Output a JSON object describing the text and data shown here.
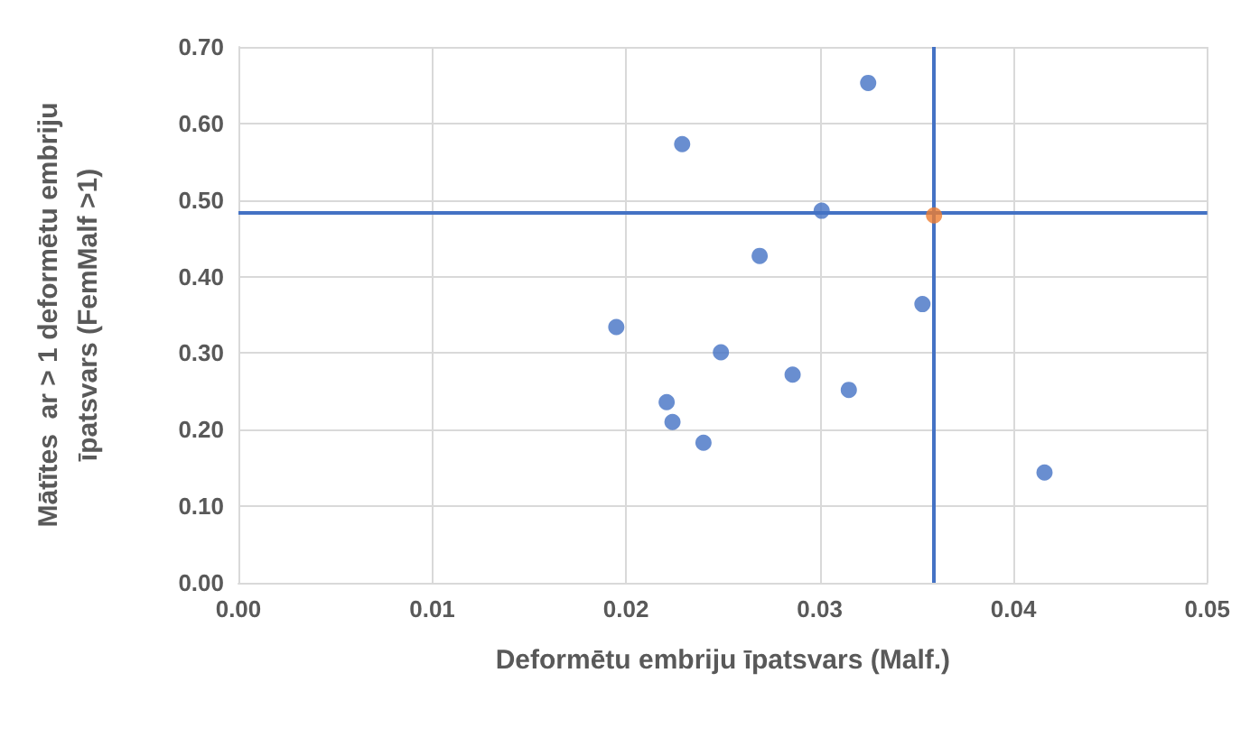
{
  "chart_data": {
    "type": "scatter",
    "xlabel": "Deformētu embriju īpatsvars (Malf.)",
    "ylabel": "Mātītes  ar > 1 deformētu embriju\nīpatsvars (FemMalf >1)",
    "series": [
      {
        "color": "#4472c4",
        "x": [
          0.0325,
          0.0229,
          0.0301,
          0.0269,
          0.0353,
          0.0195,
          0.0249,
          0.0286,
          0.0315,
          0.0221,
          0.0224,
          0.024,
          0.0416
        ],
        "values": [
          0.653,
          0.573,
          0.486,
          0.427,
          0.364,
          0.334,
          0.301,
          0.272,
          0.252,
          0.236,
          0.21,
          0.183,
          0.144
        ]
      },
      {
        "color": "#ed7d31",
        "x": [
          0.0359
        ],
        "values": [
          0.48
        ]
      }
    ],
    "xlim": [
      0,
      0.05
    ],
    "xticks": [
      {
        "value": 0,
        "label": "0.00"
      },
      {
        "value": 0.01,
        "label": "0.01"
      },
      {
        "value": 0.02,
        "label": "0.02"
      },
      {
        "value": 0.03,
        "label": "0.03"
      },
      {
        "value": 0.04,
        "label": "0.04"
      },
      {
        "value": 0.05,
        "label": "0.05"
      }
    ],
    "ylim": [
      0,
      0.7
    ],
    "yticks": [
      {
        "value": 0,
        "label": "0.00"
      },
      {
        "value": 0.1,
        "label": "0.10"
      },
      {
        "value": 0.2,
        "label": "0.20"
      },
      {
        "value": 0.3,
        "label": "0.30"
      },
      {
        "value": 0.4,
        "label": "0.40"
      },
      {
        "value": 0.5,
        "label": "0.50"
      },
      {
        "value": 0.6,
        "label": "0.60"
      },
      {
        "value": 0.7,
        "label": "0.70"
      }
    ],
    "ref_lines": [
      {
        "axis": "x",
        "value": 0.0359,
        "color": "#4472c4"
      },
      {
        "axis": "y",
        "value": 0.483,
        "color": "#4472c4"
      }
    ],
    "grid": true,
    "marker": "circle"
  }
}
